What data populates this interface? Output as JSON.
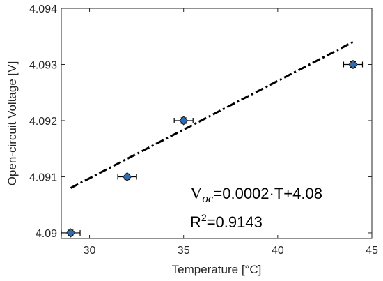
{
  "chart_data": {
    "type": "scatter",
    "xlabel": "Temperature [°C]",
    "ylabel": "Open-circuit Voltage [V]",
    "xlim": [
      28.5,
      45
    ],
    "ylim": [
      4.0899,
      4.094
    ],
    "x_ticks": [
      {
        "value": 30,
        "label": "30"
      },
      {
        "value": 35,
        "label": "35"
      },
      {
        "value": 40,
        "label": "40"
      },
      {
        "value": 45,
        "label": "45"
      }
    ],
    "y_ticks": [
      {
        "value": 4.09,
        "label": "4.09"
      },
      {
        "value": 4.091,
        "label": "4.091"
      },
      {
        "value": 4.092,
        "label": "4.092"
      },
      {
        "value": 4.093,
        "label": "4.093"
      },
      {
        "value": 4.094,
        "label": "4.094"
      }
    ],
    "grid": false,
    "points": [
      {
        "x": 29,
        "y": 4.09
      },
      {
        "x": 32,
        "y": 4.091
      },
      {
        "x": 35,
        "y": 4.092
      },
      {
        "x": 44,
        "y": 4.093
      }
    ],
    "x_error": 0.5,
    "y_error": 5e-05,
    "fit_line": {
      "x": [
        29,
        44
      ],
      "y": [
        4.0908,
        4.0934
      ],
      "style": "dash-dot"
    },
    "annotations": {
      "equation_v": "V",
      "equation_sub": "oc",
      "equation_rest": "=0.0002·T+4.08",
      "r_squared_prefix": "R",
      "r_squared_sup": "2",
      "r_squared_value": "=0.9143"
    },
    "colors": {
      "marker_fill": "#2f6eb5",
      "marker_edge": "#1a1a1a",
      "fit_line": "#000000",
      "axes": "#262626"
    }
  }
}
